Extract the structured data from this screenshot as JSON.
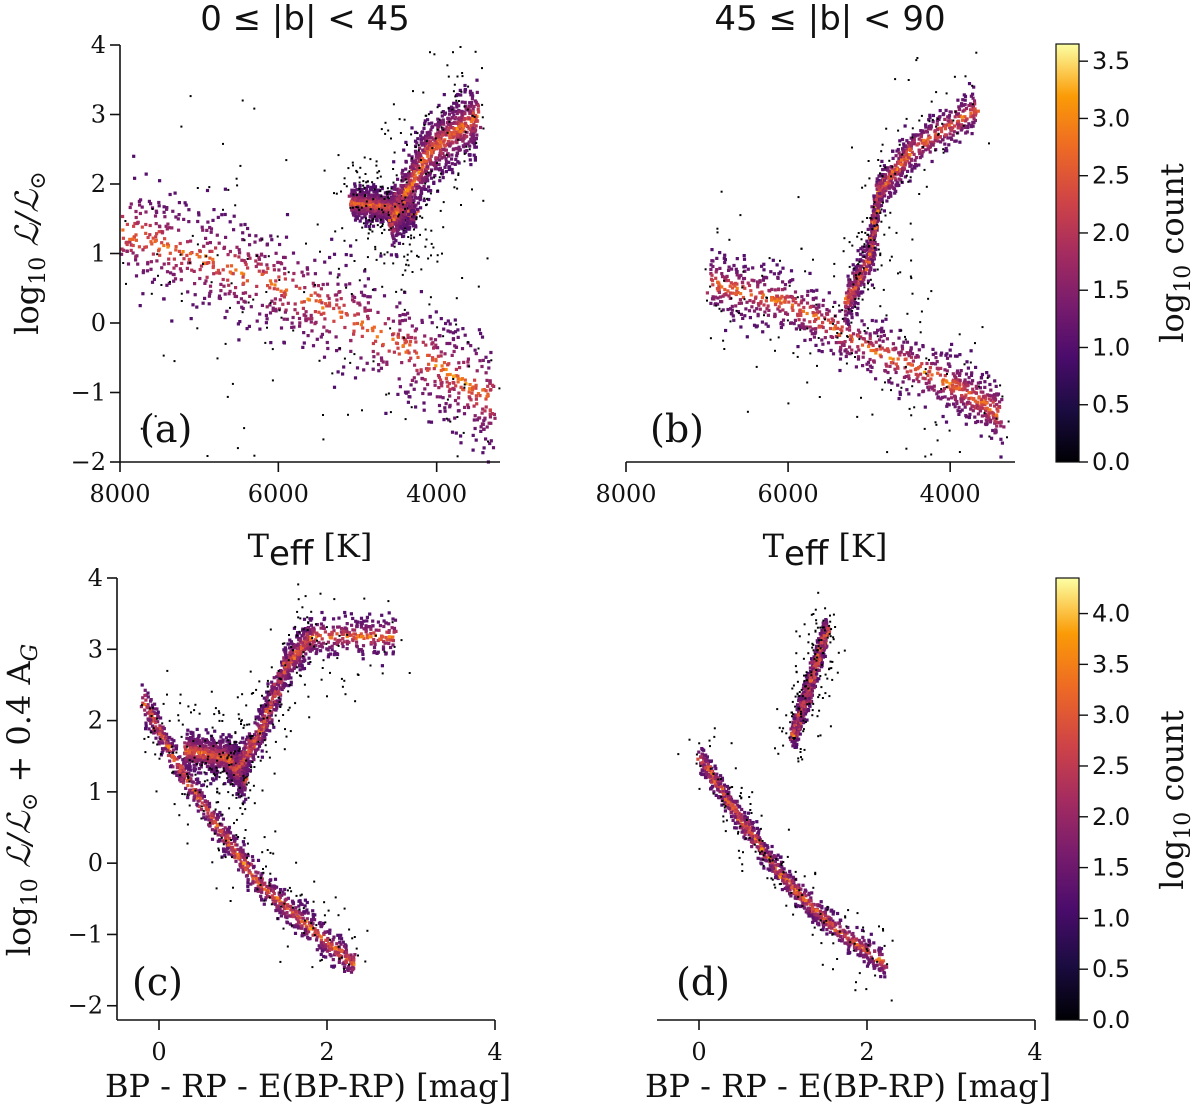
{
  "chart_data": [
    {
      "type": "heatmap",
      "panel_label": "(a)",
      "title": "0 ≤ |b| < 45",
      "xlabel": "T_eff [K]",
      "ylabel": "log10 L/L⊙",
      "xlim": [
        8000,
        3200
      ],
      "ylim": [
        -2,
        4
      ],
      "x_ticks": [
        8000,
        6000,
        4000
      ],
      "x_tick_labels": [
        "8000",
        "6000",
        "4000"
      ],
      "y_ticks": [
        -2,
        -1,
        0,
        1,
        2,
        3,
        4
      ],
      "y_tick_labels": [
        "−2",
        "−1",
        "0",
        "1",
        "2",
        "3",
        "4"
      ],
      "features": [
        {
          "name": "main-band",
          "points": [
            [
              8000,
              1.35
            ],
            [
              7000,
              0.95
            ],
            [
              6000,
              0.55
            ],
            [
              5000,
              0.0
            ],
            [
              4000,
              -0.6
            ],
            [
              3300,
              -1.1
            ]
          ],
          "width": 0.9
        },
        {
          "name": "red-clump",
          "points": [
            [
              5100,
              1.75
            ],
            [
              4700,
              1.7
            ],
            [
              4300,
              1.6
            ]
          ],
          "width": 0.25
        },
        {
          "name": "giant-branch",
          "points": [
            [
              4600,
              1.5
            ],
            [
              4100,
              2.5
            ],
            [
              3500,
              3.0
            ]
          ],
          "width": 0.55
        }
      ],
      "lower_envelope": [
        [
          8000,
          0.7
        ],
        [
          7000,
          0.3
        ],
        [
          6000,
          -0.15
        ],
        [
          5000,
          -0.65
        ],
        [
          4000,
          -1.15
        ],
        [
          3300,
          -1.55
        ]
      ],
      "upper_envelope": [
        [
          8000,
          2.1
        ],
        [
          6000,
          1.95
        ],
        [
          5000,
          2.3
        ],
        [
          4000,
          3.1
        ],
        [
          3300,
          3.2
        ]
      ],
      "colorbar": {
        "label": "log10 count",
        "range": [
          0,
          3.65
        ],
        "ticks": [
          0.0,
          0.5,
          1.0,
          1.5,
          2.0,
          2.5,
          3.0,
          3.5
        ],
        "tick_labels": [
          "0.0",
          "0.5",
          "1.0",
          "1.5",
          "2.0",
          "2.5",
          "3.0",
          "3.5"
        ]
      }
    },
    {
      "type": "heatmap",
      "panel_label": "(b)",
      "title": "45 ≤ |b| < 90",
      "xlabel": "T_eff [K]",
      "ylabel": "",
      "xlim": [
        8000,
        3200
      ],
      "ylim": [
        -2,
        4
      ],
      "x_ticks": [
        8000,
        6000,
        4000
      ],
      "x_tick_labels": [
        "8000",
        "6000",
        "4000"
      ],
      "features": [
        {
          "name": "main-sequence",
          "points": [
            [
              7000,
              0.6
            ],
            [
              6000,
              0.3
            ],
            [
              5000,
              -0.35
            ],
            [
              4000,
              -0.85
            ],
            [
              3400,
              -1.3
            ]
          ],
          "width": 0.5
        },
        {
          "name": "subgiant-giant",
          "points": [
            [
              5300,
              0.3
            ],
            [
              5000,
              1.0
            ],
            [
              4900,
              1.9
            ],
            [
              4500,
              2.5
            ],
            [
              3700,
              3.1
            ]
          ],
          "width": 0.35
        }
      ],
      "colorbar": null
    },
    {
      "type": "heatmap",
      "panel_label": "(c)",
      "title": "",
      "xlabel": "BP - RP - E(BP-RP) [mag]",
      "ylabel": "log10 L/L⊙ + 0.4 A_G",
      "xlim": [
        -0.5,
        4.0
      ],
      "ylim": [
        -2.2,
        4.0
      ],
      "x_ticks": [
        0,
        2,
        4
      ],
      "x_tick_labels": [
        "0",
        "2",
        "4"
      ],
      "y_ticks": [
        -2,
        -1,
        0,
        1,
        2,
        3,
        4
      ],
      "y_tick_labels": [
        "−2",
        "−1",
        "0",
        "1",
        "2",
        "3",
        "4"
      ],
      "features": [
        {
          "name": "main-sequence",
          "points": [
            [
              -0.2,
              2.3
            ],
            [
              0.2,
              1.4
            ],
            [
              0.7,
              0.5
            ],
            [
              1.2,
              -0.3
            ],
            [
              1.8,
              -0.9
            ],
            [
              2.3,
              -1.4
            ]
          ],
          "width": 0.25
        },
        {
          "name": "turnoff-bridge",
          "points": [
            [
              0.3,
              1.6
            ],
            [
              0.8,
              1.5
            ],
            [
              1.0,
              1.2
            ]
          ],
          "width": 0.3
        },
        {
          "name": "giant-branch",
          "points": [
            [
              0.9,
              1.3
            ],
            [
              1.2,
              1.9
            ],
            [
              1.5,
              2.8
            ],
            [
              1.8,
              3.2
            ],
            [
              2.8,
              3.2
            ]
          ],
          "width": 0.3
        }
      ],
      "colorbar": {
        "label": "log10 count",
        "range": [
          0,
          4.35
        ],
        "ticks": [
          0.0,
          0.5,
          1.0,
          1.5,
          2.0,
          2.5,
          3.0,
          3.5,
          4.0
        ],
        "tick_labels": [
          "0.0",
          "0.5",
          "1.0",
          "1.5",
          "2.0",
          "2.5",
          "3.0",
          "3.5",
          "4.0"
        ]
      }
    },
    {
      "type": "heatmap",
      "panel_label": "(d)",
      "title": "",
      "xlabel": "BP - RP - E(BP-RP) [mag]",
      "ylabel": "",
      "xlim": [
        -0.5,
        4.0
      ],
      "ylim": [
        -2.2,
        4.0
      ],
      "x_ticks": [
        0,
        2,
        4
      ],
      "x_tick_labels": [
        "0",
        "2",
        "4"
      ],
      "features": [
        {
          "name": "main-sequence",
          "points": [
            [
              0.0,
              1.5
            ],
            [
              0.5,
              0.6
            ],
            [
              1.0,
              -0.2
            ],
            [
              1.5,
              -0.8
            ],
            [
              2.2,
              -1.4
            ]
          ],
          "width": 0.2
        },
        {
          "name": "giant-clump",
          "points": [
            [
              1.1,
              1.8
            ],
            [
              1.3,
              2.5
            ],
            [
              1.5,
              3.3
            ]
          ],
          "width": 0.2
        }
      ],
      "colorbar": null
    }
  ]
}
